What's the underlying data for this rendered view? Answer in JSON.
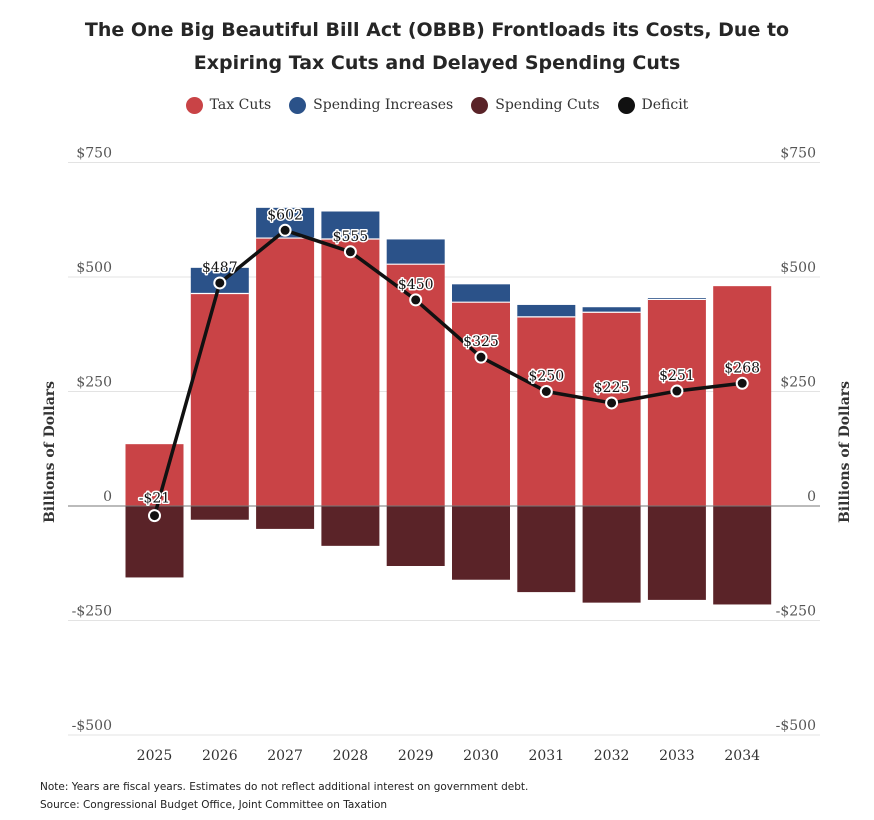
{
  "chart_data": {
    "type": "bar",
    "title_lines": [
      "The One Big Beautiful Bill Act (OBBB) Frontloads its Costs, Due to",
      "Expiring Tax Cuts and Delayed Spending Cuts"
    ],
    "categories": [
      "2025",
      "2026",
      "2027",
      "2028",
      "2029",
      "2030",
      "2031",
      "2032",
      "2033",
      "2034"
    ],
    "series": [
      {
        "name": "Tax Cuts",
        "color": "#c94346",
        "values": [
          135,
          464,
          585,
          583,
          528,
          445,
          413,
          423,
          451,
          480
        ]
      },
      {
        "name": "Spending Increases",
        "color": "#2b5289",
        "values": [
          0,
          56,
          66,
          60,
          54,
          39,
          26,
          11,
          3,
          0
        ]
      },
      {
        "name": "Spending Cuts",
        "color": "#5a2328",
        "values": [
          -156,
          -30,
          -50,
          -87,
          -131,
          -161,
          -188,
          -211,
          -205,
          -215
        ]
      },
      {
        "name": "Deficit",
        "color": "#111111",
        "values": [
          -21,
          487,
          602,
          555,
          450,
          325,
          250,
          225,
          251,
          268
        ]
      }
    ],
    "data_labels": [
      "-$21",
      "$487",
      "$602",
      "$555",
      "$450",
      "$325",
      "$250",
      "$225",
      "$251",
      "$268"
    ],
    "ylim": [
      -500,
      750
    ],
    "yticks": [
      750,
      500,
      250,
      0,
      -250,
      -500
    ],
    "ytick_labels": [
      "$750",
      "$500",
      "$250",
      "0",
      "-$250",
      "-$500"
    ],
    "ylabel": "Billions of Dollars",
    "xlabel": "",
    "legend_position": "top-center",
    "grid": true
  },
  "notes": {
    "note": "Note: Years are fiscal years. Estimates do not reflect additional interest on government debt.",
    "source": "Source: Congressional Budget Office, Joint Committee on Taxation"
  }
}
